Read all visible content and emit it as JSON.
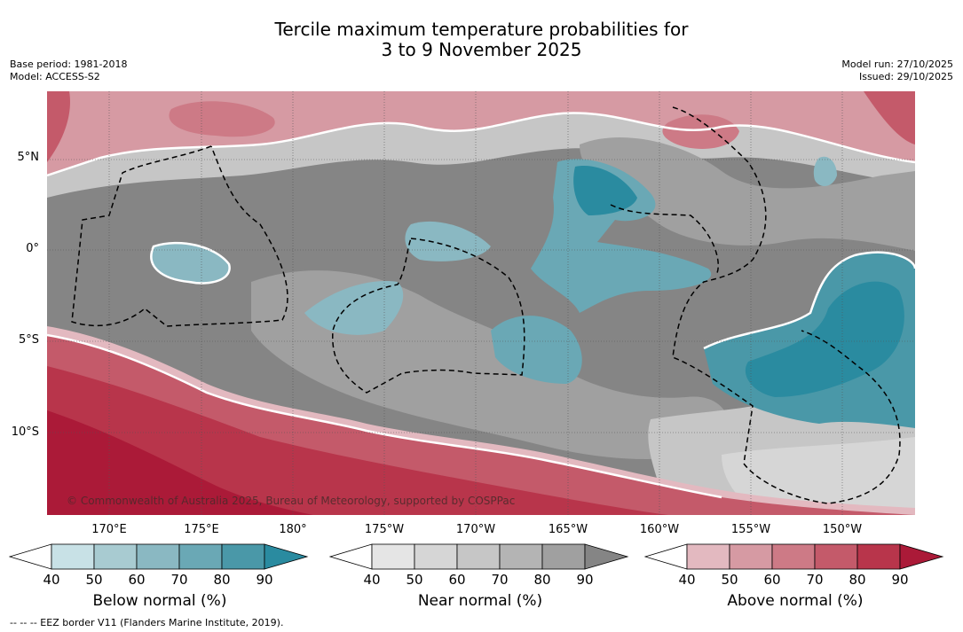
{
  "header": {
    "title_line1": "Tercile maximum temperature probabilities for",
    "title_line2": "3 to 9 November 2025",
    "base_period": "Base period: 1981-2018",
    "model": "Model: ACCESS-S2",
    "model_run": "Model run: 27/10/2025",
    "issued": "Issued: 29/10/2025"
  },
  "map": {
    "lat_labels": [
      "5°N",
      "0°",
      "5°S",
      "10°S"
    ],
    "lon_labels": [
      "170°E",
      "175°E",
      "180°",
      "175°W",
      "170°W",
      "165°W",
      "160°W",
      "155°W",
      "150°W"
    ],
    "copyright": "© Commonwealth of Australia 2025, Bureau of Meteorology, supported by COSPPac",
    "colors": {
      "above": [
        "#ffffff",
        "#e3b9c0",
        "#d69aa3",
        "#cd7a86",
        "#c45a6a",
        "#b8354b",
        "#ab1a38"
      ],
      "near": [
        "#ffffff",
        "#e5e5e5",
        "#d6d6d6",
        "#c6c6c6",
        "#b4b4b4",
        "#a0a0a0",
        "#858585"
      ],
      "below": [
        "#ffffff",
        "#c8e1e6",
        "#a8cbd1",
        "#8ab8c2",
        "#6aa8b5",
        "#4a98a8",
        "#2a8ba0"
      ]
    }
  },
  "legends": [
    {
      "title": "Below normal (%)",
      "ticks": [
        "40",
        "50",
        "60",
        "70",
        "80",
        "90"
      ],
      "palette": "below"
    },
    {
      "title": "Near normal (%)",
      "ticks": [
        "40",
        "50",
        "60",
        "70",
        "80",
        "90"
      ],
      "palette": "near"
    },
    {
      "title": "Above normal (%)",
      "ticks": [
        "40",
        "50",
        "60",
        "70",
        "80",
        "90"
      ],
      "palette": "above"
    }
  ],
  "footnote": "-- -- -- EEZ border V11 (Flanders Marine Institute, 2019)."
}
